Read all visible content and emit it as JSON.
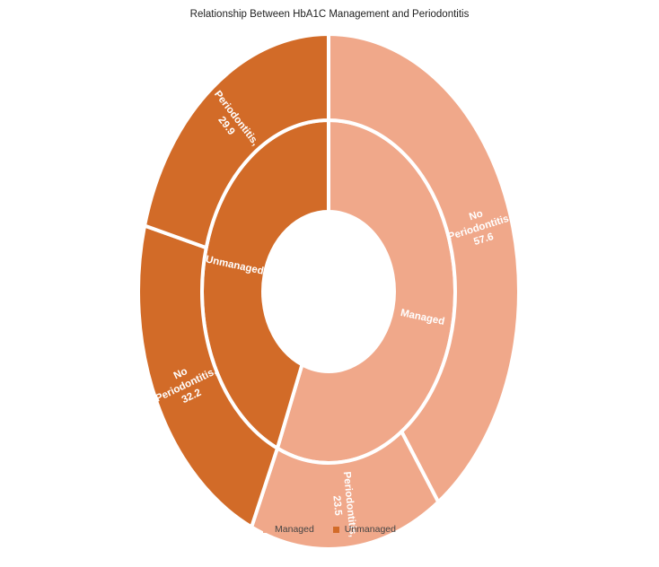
{
  "chart_data": {
    "type": "sunburst",
    "title": "Relationship Between HbA1C Management and Periodontitis",
    "inner_ring": [
      {
        "name": "Managed",
        "value": 81.1,
        "color": "#f0a88a"
      },
      {
        "name": "Unmanaged",
        "value": 62.1,
        "color": "#d26b28"
      }
    ],
    "outer_ring": [
      {
        "parent": "Managed",
        "name": "No Periodontitis",
        "value": 57.6,
        "label_lines": [
          "No",
          "Periodontitis,",
          "57.6"
        ],
        "color": "#f0a88a"
      },
      {
        "parent": "Managed",
        "name": "Periodontitis",
        "value": 23.5,
        "label_lines": [
          "Periodontitis,",
          "23.5"
        ],
        "color": "#f0a88a"
      },
      {
        "parent": "Unmanaged",
        "name": "No Periodontitis",
        "value": 32.2,
        "label_lines": [
          "No",
          "Periodontitis,",
          "32.2"
        ],
        "color": "#d26b28"
      },
      {
        "parent": "Unmanaged",
        "name": "Periodontitis",
        "value": 29.9,
        "label_lines": [
          "Periodontitis,",
          "29.9"
        ],
        "color": "#d26b28"
      }
    ],
    "legend": [
      {
        "label": "Managed",
        "color": "#f0a88a"
      },
      {
        "label": "Unmanaged",
        "color": "#d26b28"
      }
    ],
    "legend_position": "bottom"
  }
}
